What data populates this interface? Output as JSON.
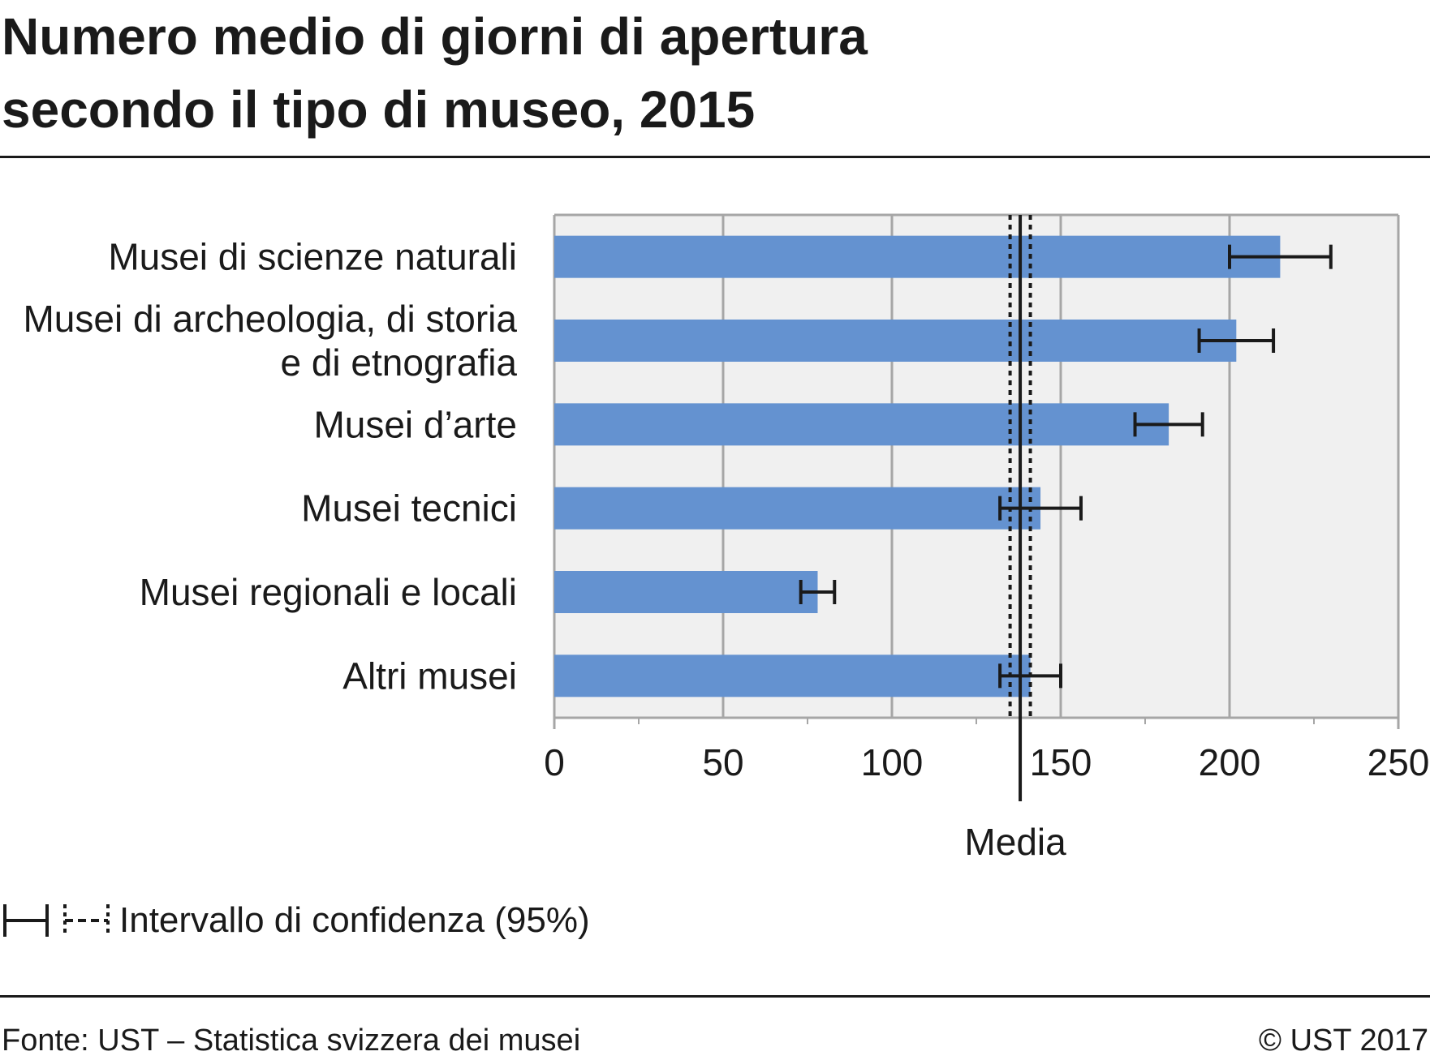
{
  "header": {
    "title_line1": "Numero medio di giorni di apertura",
    "title_line2": "secondo il tipo di museo, 2015"
  },
  "chart_data": {
    "type": "bar",
    "orientation": "horizontal",
    "categories": [
      [
        "Musei di scienze naturali"
      ],
      [
        "Musei di archeologia, di storia",
        "e di etnografia"
      ],
      [
        "Musei d’arte"
      ],
      [
        "Musei tecnici"
      ],
      [
        "Musei regionali e locali"
      ],
      [
        "Altri musei"
      ]
    ],
    "values": [
      215,
      202,
      182,
      144,
      78,
      141
    ],
    "ci_low": [
      200,
      191,
      172,
      132,
      73,
      132
    ],
    "ci_high": [
      230,
      213,
      192,
      156,
      83,
      150
    ],
    "xlim": [
      0,
      250
    ],
    "xticks": [
      0,
      50,
      100,
      150,
      200,
      250
    ],
    "grid": true,
    "mean": {
      "label": "Media",
      "value": 138,
      "ci_low": 135,
      "ci_high": 141
    },
    "colors": {
      "bar": "#6492d0",
      "plot_bg": "#f0f0f0",
      "grid": "#a6a6a6",
      "marks": "#1a1a1a"
    }
  },
  "legend": {
    "text": "Intervallo di confidenza (95%)"
  },
  "footer": {
    "source": "Fonte: UST – Statistica svizzera dei musei",
    "copyright": "© UST 2017"
  }
}
